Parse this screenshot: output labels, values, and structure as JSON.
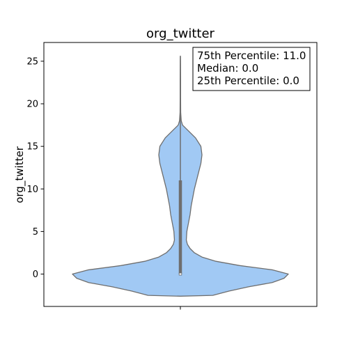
{
  "chart_data": {
    "type": "violin",
    "title": "org_twitter",
    "xlabel": "",
    "ylabel": "org_twitter",
    "ylim": [
      -3.8,
      27.2
    ],
    "yticks": [
      0,
      5,
      10,
      15,
      20,
      25
    ],
    "ytick_labels": [
      "0",
      "5",
      "10",
      "15",
      "20",
      "25"
    ],
    "grid": false,
    "colors": {
      "fill": "#a1c9f4",
      "edge": "#6e6e6e",
      "box": "#6e6e6e"
    },
    "density_profile": [
      {
        "y": -2.6,
        "halfwidth": 0.0
      },
      {
        "y": -2.5,
        "halfwidth": 0.3
      },
      {
        "y": -2.0,
        "halfwidth": 0.45
      },
      {
        "y": -1.5,
        "halfwidth": 0.63
      },
      {
        "y": -1.0,
        "halfwidth": 0.85
      },
      {
        "y": -0.5,
        "halfwidth": 0.96
      },
      {
        "y": 0.0,
        "halfwidth": 1.0
      },
      {
        "y": 0.5,
        "halfwidth": 0.85
      },
      {
        "y": 1.0,
        "halfwidth": 0.55
      },
      {
        "y": 1.5,
        "halfwidth": 0.33
      },
      {
        "y": 2.0,
        "halfwidth": 0.2
      },
      {
        "y": 2.5,
        "halfwidth": 0.13
      },
      {
        "y": 3.0,
        "halfwidth": 0.09
      },
      {
        "y": 3.5,
        "halfwidth": 0.065
      },
      {
        "y": 4.0,
        "halfwidth": 0.055
      },
      {
        "y": 5.0,
        "halfwidth": 0.06
      },
      {
        "y": 6.0,
        "halfwidth": 0.075
      },
      {
        "y": 7.0,
        "halfwidth": 0.09
      },
      {
        "y": 8.0,
        "halfwidth": 0.1
      },
      {
        "y": 9.0,
        "halfwidth": 0.115
      },
      {
        "y": 10.0,
        "halfwidth": 0.13
      },
      {
        "y": 11.0,
        "halfwidth": 0.15
      },
      {
        "y": 12.0,
        "halfwidth": 0.17
      },
      {
        "y": 13.0,
        "halfwidth": 0.19
      },
      {
        "y": 14.0,
        "halfwidth": 0.2
      },
      {
        "y": 15.0,
        "halfwidth": 0.19
      },
      {
        "y": 16.0,
        "halfwidth": 0.14
      },
      {
        "y": 17.0,
        "halfwidth": 0.06
      },
      {
        "y": 17.5,
        "halfwidth": 0.02
      },
      {
        "y": 18.0,
        "halfwidth": 0.008
      },
      {
        "y": 19.0,
        "halfwidth": 0.003
      },
      {
        "y": 21.0,
        "halfwidth": 0.002
      },
      {
        "y": 23.0,
        "halfwidth": 0.002
      },
      {
        "y": 25.0,
        "halfwidth": 0.001
      },
      {
        "y": 25.6,
        "halfwidth": 0.0
      }
    ],
    "box": {
      "q1": 0.0,
      "median": 0.0,
      "q3": 11.0,
      "whisker_low": 0.0,
      "whisker_high": 25.6
    },
    "annotation": {
      "lines": [
        "75th Percentile: 11.0",
        "Median: 0.0",
        "25th Percentile: 0.0"
      ]
    }
  }
}
